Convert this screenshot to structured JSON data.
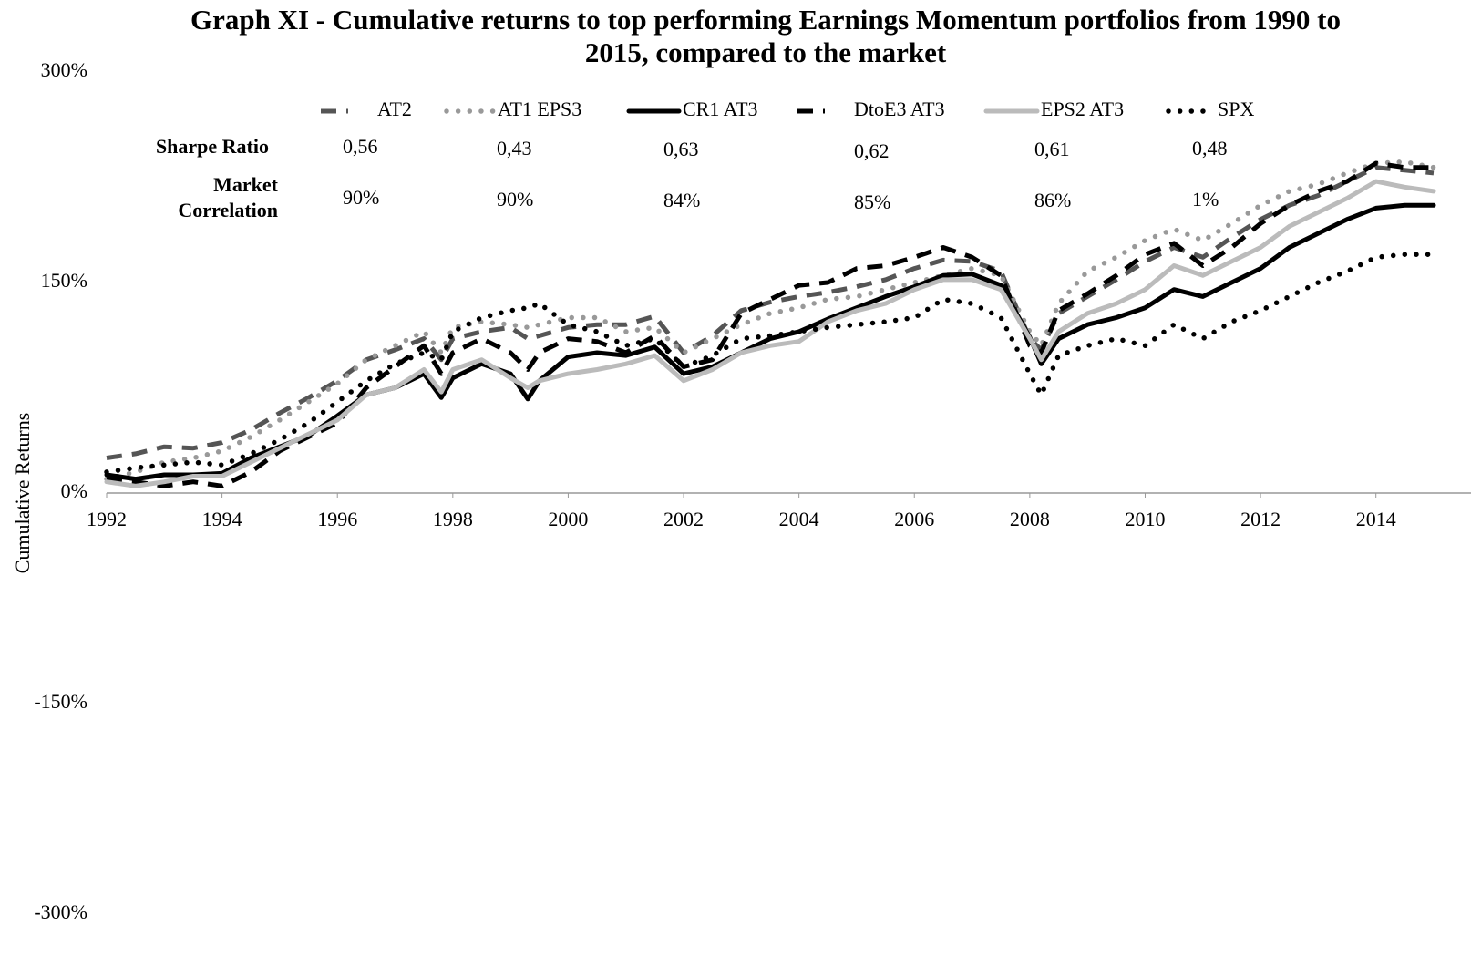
{
  "chart_data": {
    "type": "line",
    "title": "Graph XI - Cumulative returns to top performing Earnings Momentum portfolios from 1990 to 2015, compared to the market",
    "y_label": "Cumulative Returns",
    "x": [
      1992,
      1992.5,
      1993,
      1993.5,
      1994,
      1994.5,
      1995,
      1995.5,
      1996,
      1996.5,
      1997,
      1997.5,
      1997.8,
      1998,
      1998.5,
      1999,
      1999.3,
      1999.5,
      2000,
      2000.5,
      2001,
      2001.5,
      2002,
      2002.5,
      2003,
      2003.5,
      2004,
      2004.5,
      2005,
      2005.5,
      2006,
      2006.5,
      2007,
      2007.5,
      2008,
      2008.2,
      2008.5,
      2009,
      2009.5,
      2010,
      2010.5,
      2011,
      2011.5,
      2012,
      2012.5,
      2013,
      2013.5,
      2014,
      2014.5,
      2015
    ],
    "xlim": [
      1992,
      2015
    ],
    "xticks": [
      1992,
      1994,
      1996,
      1998,
      2000,
      2002,
      2004,
      2006,
      2008,
      2010,
      2012,
      2014
    ],
    "ylim": [
      -300,
      300
    ],
    "yticks": [
      {
        "value": -300,
        "label": "-300%"
      },
      {
        "value": -150,
        "label": "-150%"
      },
      {
        "value": 0,
        "label": "0%"
      },
      {
        "value": 150,
        "label": "150%"
      },
      {
        "value": 300,
        "label": "300%"
      }
    ],
    "grid": false,
    "series": [
      {
        "name": "AT2",
        "color": "#555555",
        "dash": "dashed",
        "values": [
          25,
          28,
          33,
          32,
          36,
          45,
          57,
          68,
          80,
          95,
          102,
          110,
          95,
          110,
          115,
          118,
          110,
          112,
          118,
          120,
          120,
          126,
          100,
          112,
          130,
          136,
          140,
          143,
          147,
          152,
          160,
          166,
          165,
          158,
          110,
          102,
          128,
          140,
          152,
          165,
          175,
          168,
          182,
          195,
          205,
          212,
          222,
          232,
          230,
          228
        ]
      },
      {
        "name": "AT1 EPS3",
        "color": "#999999",
        "dash": "dotted",
        "values": [
          10,
          15,
          22,
          25,
          30,
          40,
          52,
          65,
          78,
          95,
          105,
          115,
          100,
          118,
          122,
          120,
          118,
          120,
          125,
          125,
          115,
          118,
          100,
          110,
          120,
          128,
          132,
          138,
          140,
          145,
          150,
          155,
          160,
          155,
          115,
          105,
          135,
          158,
          168,
          180,
          188,
          180,
          192,
          205,
          215,
          220,
          228,
          235,
          236,
          232
        ]
      },
      {
        "name": "CR1 AT3",
        "color": "#000000",
        "dash": "solid",
        "values": [
          13,
          10,
          13,
          13,
          14,
          25,
          33,
          41,
          55,
          70,
          75,
          85,
          68,
          82,
          92,
          85,
          67,
          80,
          97,
          100,
          98,
          104,
          85,
          90,
          100,
          110,
          115,
          124,
          132,
          140,
          147,
          155,
          156,
          148,
          111,
          92,
          110,
          120,
          125,
          132,
          145,
          140,
          150,
          160,
          175,
          185,
          195,
          203,
          205,
          205
        ]
      },
      {
        "name": "DtoE3 AT3",
        "color": "#000000",
        "dash": "dashed",
        "values": [
          10,
          8,
          5,
          8,
          5,
          15,
          30,
          40,
          50,
          75,
          90,
          105,
          85,
          100,
          110,
          100,
          88,
          100,
          110,
          108,
          100,
          112,
          90,
          95,
          128,
          138,
          148,
          150,
          160,
          162,
          168,
          175,
          168,
          155,
          105,
          100,
          130,
          142,
          155,
          170,
          178,
          162,
          175,
          192,
          205,
          215,
          222,
          235,
          232,
          232
        ]
      },
      {
        "name": "EPS2 AT3",
        "color": "#bbbbbb",
        "dash": "solid",
        "values": [
          8,
          5,
          8,
          12,
          12,
          22,
          32,
          42,
          52,
          70,
          75,
          88,
          72,
          88,
          95,
          82,
          75,
          80,
          85,
          88,
          92,
          98,
          80,
          88,
          100,
          105,
          108,
          122,
          130,
          135,
          145,
          152,
          152,
          145,
          110,
          95,
          115,
          128,
          135,
          145,
          162,
          155,
          165,
          175,
          190,
          200,
          210,
          222,
          218,
          215
        ]
      },
      {
        "name": "SPX",
        "color": "#000000",
        "dash": "dotted",
        "values": [
          15,
          18,
          20,
          22,
          20,
          28,
          38,
          50,
          65,
          80,
          92,
          100,
          95,
          115,
          125,
          130,
          132,
          135,
          120,
          115,
          105,
          110,
          90,
          98,
          110,
          112,
          115,
          118,
          120,
          122,
          125,
          138,
          135,
          125,
          85,
          70,
          98,
          105,
          110,
          105,
          120,
          110,
          122,
          130,
          140,
          150,
          158,
          168,
          170,
          170
        ]
      }
    ],
    "stats": [
      {
        "label_lines": [
          "Sharpe Ratio"
        ],
        "values": [
          "0,56",
          "0,43",
          "0,63",
          "0,62",
          "0,61",
          "0,48"
        ]
      },
      {
        "label_lines": [
          "Market",
          "Correlation"
        ],
        "values": [
          "90%",
          "90%",
          "84%",
          "85%",
          "86%",
          "1%"
        ]
      }
    ]
  }
}
